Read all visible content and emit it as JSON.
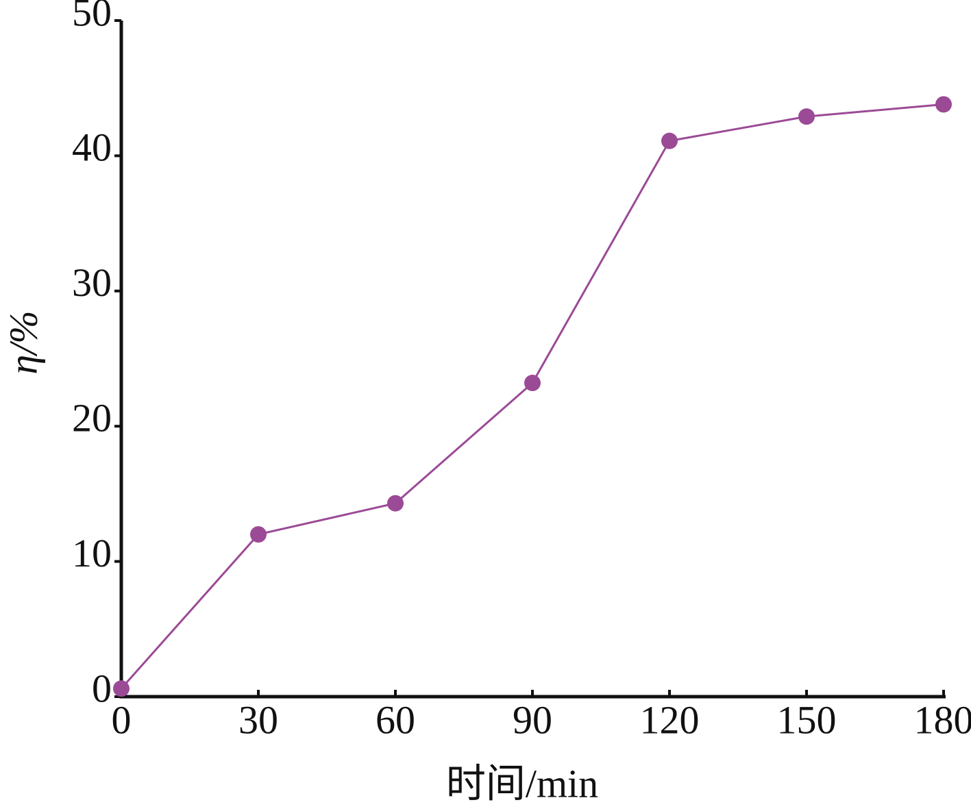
{
  "chart_data": {
    "type": "line",
    "x_label": "时间/min",
    "y_label": "η/%",
    "x": [
      0,
      30,
      60,
      90,
      120,
      150,
      180
    ],
    "series": [
      {
        "name": "η",
        "color": "#9b4a96",
        "values": [
          0.6,
          12.0,
          14.3,
          23.2,
          41.1,
          42.9,
          43.8
        ]
      }
    ],
    "xlim": [
      0,
      180
    ],
    "xticks": [
      0,
      30,
      60,
      90,
      120,
      150,
      180
    ],
    "ylim": [
      0,
      50
    ],
    "yticks": [
      0,
      10,
      20,
      30,
      40,
      50
    ]
  }
}
